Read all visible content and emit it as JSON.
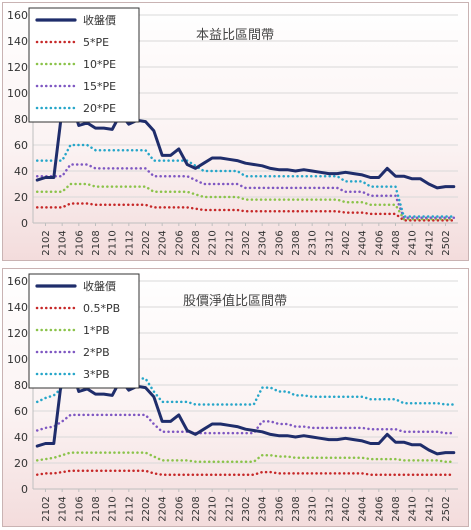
{
  "chart_data": [
    {
      "type": "line",
      "title": "本益比區間帶",
      "ylim": [
        0,
        160
      ],
      "yticks": [
        0,
        20,
        40,
        60,
        80,
        100,
        120,
        140,
        160
      ],
      "grid": true,
      "legend_position": "top-left",
      "x": [
        "2101",
        "2102",
        "2103",
        "2104",
        "2105",
        "2106",
        "2107",
        "2108",
        "2109",
        "2110",
        "2111",
        "2112",
        "2201",
        "2202",
        "2203",
        "2204",
        "2205",
        "2206",
        "2207",
        "2208",
        "2209",
        "2210",
        "2211",
        "2212",
        "2301",
        "2302",
        "2303",
        "2304",
        "2305",
        "2306",
        "2307",
        "2308",
        "2309",
        "2310",
        "2311",
        "2312",
        "2401",
        "2402",
        "2403",
        "2404",
        "2405",
        "2406",
        "2407",
        "2408",
        "2409",
        "2410",
        "2411",
        "2412",
        "2501",
        "2502",
        "2503"
      ],
      "xtick_labels": [
        "2102",
        "2104",
        "2106",
        "2108",
        "2110",
        "2112",
        "2202",
        "2204",
        "2206",
        "2208",
        "2210",
        "2212",
        "2302",
        "2304",
        "2306",
        "2308",
        "2310",
        "2312",
        "2402",
        "2404",
        "2406",
        "2408",
        "2410",
        "2412",
        "2502"
      ],
      "series": [
        {
          "name": "收盤價",
          "color": "#1f2d6b",
          "style": "solid",
          "width": 3,
          "values": [
            33,
            35,
            35,
            88,
            95,
            75,
            77,
            73,
            73,
            72,
            84,
            76,
            79,
            78,
            71,
            52,
            52,
            57,
            45,
            42,
            46,
            50,
            50,
            49,
            48,
            46,
            45,
            44,
            42,
            41,
            41,
            40,
            41,
            40,
            39,
            38,
            38,
            39,
            38,
            37,
            35,
            35,
            42,
            36,
            36,
            34,
            34,
            30,
            27,
            28,
            28
          ]
        },
        {
          "name": "5*PE",
          "color": "#c62828",
          "style": "dotted",
          "width": 2.5,
          "values": [
            12,
            12,
            12,
            12,
            15,
            15,
            15,
            14,
            14,
            14,
            14,
            14,
            14,
            14,
            12,
            12,
            12,
            12,
            12,
            11,
            10,
            10,
            10,
            10,
            10,
            9,
            9,
            9,
            9,
            9,
            9,
            9,
            9,
            9,
            9,
            9,
            9,
            8,
            8,
            8,
            7,
            7,
            7,
            7,
            2,
            2,
            2,
            2,
            2,
            2,
            2
          ]
        },
        {
          "name": "10*PE",
          "color": "#8bc34a",
          "style": "dotted",
          "width": 2.5,
          "values": [
            24,
            24,
            24,
            24,
            30,
            30,
            30,
            28,
            28,
            28,
            28,
            28,
            28,
            28,
            24,
            24,
            24,
            24,
            24,
            22,
            20,
            20,
            20,
            20,
            20,
            18,
            18,
            18,
            18,
            18,
            18,
            18,
            18,
            18,
            18,
            18,
            18,
            16,
            16,
            16,
            14,
            14,
            14,
            14,
            3,
            3,
            3,
            3,
            3,
            3,
            3
          ]
        },
        {
          "name": "15*PE",
          "color": "#7e57c2",
          "style": "dotted",
          "width": 2.5,
          "values": [
            36,
            36,
            36,
            36,
            45,
            45,
            45,
            42,
            42,
            42,
            42,
            42,
            42,
            42,
            36,
            36,
            36,
            36,
            36,
            33,
            30,
            30,
            30,
            30,
            30,
            27,
            27,
            27,
            27,
            27,
            27,
            27,
            27,
            27,
            27,
            27,
            27,
            24,
            24,
            24,
            21,
            21,
            21,
            21,
            4,
            4,
            4,
            4,
            4,
            4,
            4
          ]
        },
        {
          "name": "20*PE",
          "color": "#26a6c9",
          "style": "dotted",
          "width": 2.5,
          "values": [
            48,
            48,
            48,
            48,
            60,
            60,
            60,
            56,
            56,
            56,
            56,
            56,
            56,
            56,
            48,
            48,
            48,
            48,
            48,
            44,
            40,
            40,
            40,
            40,
            40,
            36,
            36,
            36,
            36,
            36,
            36,
            36,
            36,
            36,
            36,
            36,
            36,
            32,
            32,
            32,
            28,
            28,
            28,
            28,
            5,
            5,
            5,
            5,
            5,
            5,
            5
          ]
        }
      ]
    },
    {
      "type": "line",
      "title": "股價淨值比區間帶",
      "ylim": [
        0,
        160
      ],
      "yticks": [
        0,
        20,
        40,
        60,
        80,
        100,
        120,
        140,
        160
      ],
      "grid": true,
      "legend_position": "top-left",
      "x": [
        "2101",
        "2102",
        "2103",
        "2104",
        "2105",
        "2106",
        "2107",
        "2108",
        "2109",
        "2110",
        "2111",
        "2112",
        "2201",
        "2202",
        "2203",
        "2204",
        "2205",
        "2206",
        "2207",
        "2208",
        "2209",
        "2210",
        "2211",
        "2212",
        "2301",
        "2302",
        "2303",
        "2304",
        "2305",
        "2306",
        "2307",
        "2308",
        "2309",
        "2310",
        "2311",
        "2312",
        "2401",
        "2402",
        "2403",
        "2404",
        "2405",
        "2406",
        "2407",
        "2408",
        "2409",
        "2410",
        "2411",
        "2412",
        "2501",
        "2502",
        "2503"
      ],
      "xtick_labels": [
        "2102",
        "2104",
        "2106",
        "2108",
        "2110",
        "2112",
        "2202",
        "2204",
        "2206",
        "2208",
        "2210",
        "2212",
        "2302",
        "2304",
        "2306",
        "2308",
        "2310",
        "2312",
        "2402",
        "2404",
        "2406",
        "2408",
        "2410",
        "2412",
        "2502"
      ],
      "series": [
        {
          "name": "收盤價",
          "color": "#1f2d6b",
          "style": "solid",
          "width": 3,
          "values": [
            33,
            35,
            35,
            88,
            95,
            75,
            77,
            73,
            73,
            72,
            84,
            76,
            79,
            78,
            71,
            52,
            52,
            57,
            45,
            42,
            46,
            50,
            50,
            49,
            48,
            46,
            45,
            44,
            42,
            41,
            41,
            40,
            41,
            40,
            39,
            38,
            38,
            39,
            38,
            37,
            35,
            35,
            42,
            36,
            36,
            34,
            34,
            30,
            27,
            28,
            28
          ]
        },
        {
          "name": "0.5*PB",
          "color": "#c62828",
          "style": "dotted",
          "width": 2.5,
          "values": [
            11,
            12,
            12,
            13,
            14,
            14,
            14,
            14,
            14,
            14,
            14,
            14,
            14,
            14,
            12,
            11,
            11,
            11,
            11,
            11,
            11,
            11,
            11,
            11,
            11,
            11,
            11,
            13,
            13,
            12,
            12,
            12,
            12,
            12,
            12,
            12,
            12,
            12,
            12,
            12,
            11,
            11,
            11,
            11,
            11,
            11,
            11,
            11,
            11,
            11,
            11
          ]
        },
        {
          "name": "1*PB",
          "color": "#8bc34a",
          "style": "dotted",
          "width": 2.5,
          "values": [
            22,
            23,
            24,
            26,
            28,
            28,
            28,
            28,
            28,
            28,
            28,
            28,
            28,
            28,
            25,
            22,
            22,
            22,
            22,
            21,
            21,
            21,
            21,
            21,
            21,
            21,
            21,
            26,
            26,
            25,
            25,
            24,
            24,
            24,
            24,
            24,
            24,
            24,
            24,
            24,
            23,
            23,
            23,
            23,
            22,
            22,
            22,
            22,
            22,
            21,
            21
          ]
        },
        {
          "name": "2*PB",
          "color": "#7e57c2",
          "style": "dotted",
          "width": 2.5,
          "values": [
            45,
            47,
            48,
            52,
            57,
            57,
            57,
            57,
            57,
            57,
            57,
            57,
            57,
            57,
            50,
            44,
            44,
            44,
            44,
            43,
            43,
            43,
            43,
            43,
            43,
            43,
            43,
            52,
            52,
            50,
            50,
            48,
            48,
            47,
            47,
            47,
            47,
            47,
            47,
            47,
            46,
            46,
            46,
            46,
            44,
            44,
            44,
            44,
            44,
            43,
            43
          ]
        },
        {
          "name": "3*PB",
          "color": "#26a6c9",
          "style": "dotted",
          "width": 2.5,
          "values": [
            67,
            70,
            72,
            78,
            86,
            86,
            86,
            85,
            85,
            85,
            85,
            85,
            85,
            85,
            75,
            67,
            67,
            67,
            67,
            65,
            65,
            65,
            65,
            65,
            65,
            65,
            65,
            78,
            78,
            75,
            75,
            72,
            72,
            71,
            71,
            71,
            71,
            71,
            71,
            71,
            69,
            69,
            69,
            69,
            66,
            66,
            66,
            66,
            66,
            65,
            65
          ]
        }
      ]
    }
  ]
}
